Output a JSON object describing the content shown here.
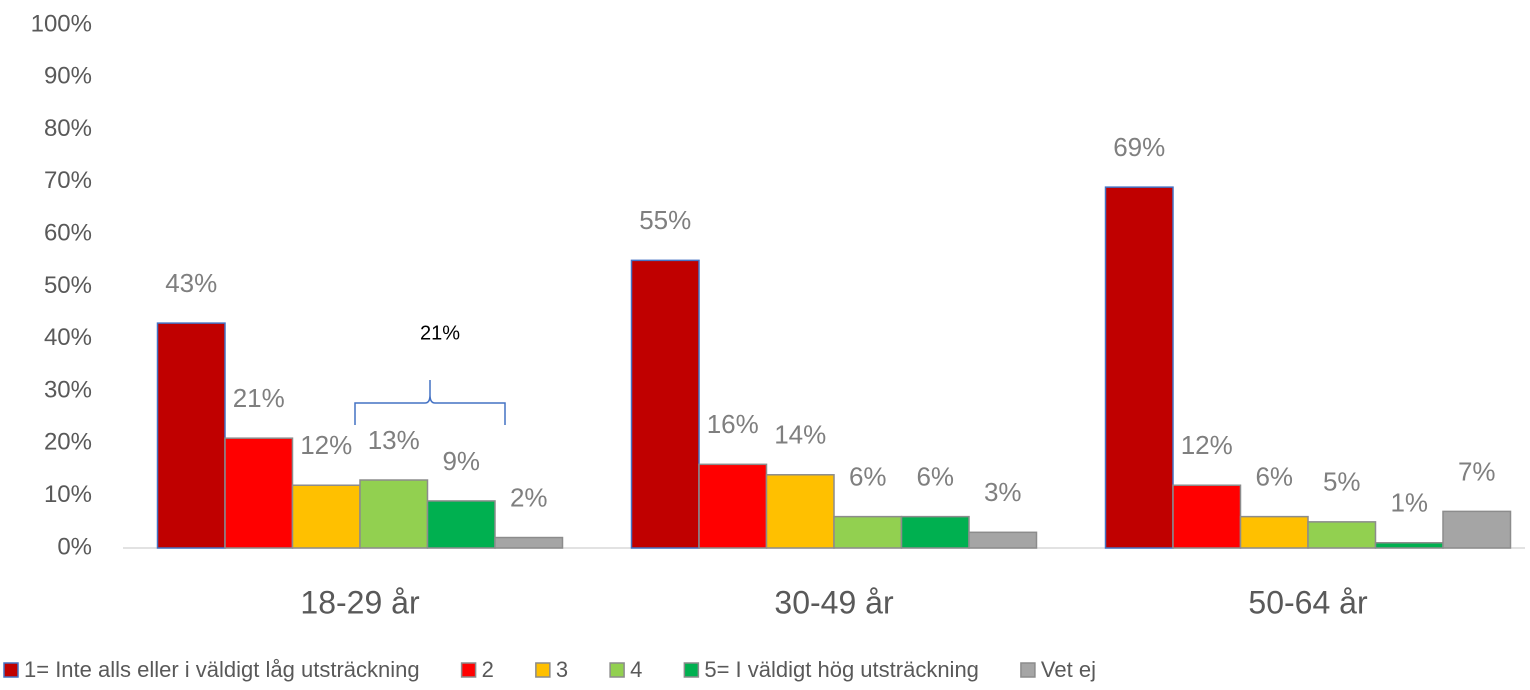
{
  "chart_data": {
    "type": "bar",
    "categories": [
      "18-29 år",
      "30-49 år",
      "50-64 år"
    ],
    "series": [
      {
        "name": "1= Inte alls eller i väldigt låg utsträckning",
        "color": "#c00000",
        "edgecolor": "#4472c4",
        "values": [
          43,
          55,
          69
        ],
        "value_labels": [
          "43%",
          "55%",
          "69%"
        ]
      },
      {
        "name": "2",
        "color": "#ff0000",
        "edgecolor": "#8c8c8c",
        "values": [
          21,
          16,
          12
        ],
        "value_labels": [
          "21%",
          "16%",
          "12%"
        ]
      },
      {
        "name": "3",
        "color": "#ffc000",
        "edgecolor": "#8c8c8c",
        "values": [
          12,
          14,
          6
        ],
        "value_labels": [
          "12%",
          "14%",
          "6%"
        ]
      },
      {
        "name": "4",
        "color": "#92d050",
        "edgecolor": "#8c8c8c",
        "values": [
          13,
          6,
          5
        ],
        "value_labels": [
          "13%",
          "6%",
          "5%"
        ]
      },
      {
        "name": "5= I väldigt hög utsträckning",
        "color": "#00b050",
        "edgecolor": "#8c8c8c",
        "values": [
          9,
          6,
          1
        ],
        "value_labels": [
          "9%",
          "6%",
          "1%"
        ]
      },
      {
        "name": "Vet ej",
        "color": "#a5a5a5",
        "edgecolor": "#8c8c8c",
        "values": [
          2,
          3,
          7
        ],
        "value_labels": [
          "2%",
          "3%",
          "7%"
        ]
      }
    ],
    "annotations": [
      {
        "text": "21%"
      }
    ],
    "ylim": [
      0,
      100
    ],
    "yticks": [
      {
        "value": 0,
        "label": "0%"
      },
      {
        "value": 10,
        "label": "10%"
      },
      {
        "value": 20,
        "label": "20%"
      },
      {
        "value": 30,
        "label": "30%"
      },
      {
        "value": 40,
        "label": "40%"
      },
      {
        "value": 50,
        "label": "50%"
      },
      {
        "value": 60,
        "label": "60%"
      },
      {
        "value": 70,
        "label": "70%"
      },
      {
        "value": 80,
        "label": "80%"
      },
      {
        "value": 90,
        "label": "90%"
      },
      {
        "value": 100,
        "label": "100%"
      }
    ],
    "grid": false,
    "legend": "bottom"
  }
}
